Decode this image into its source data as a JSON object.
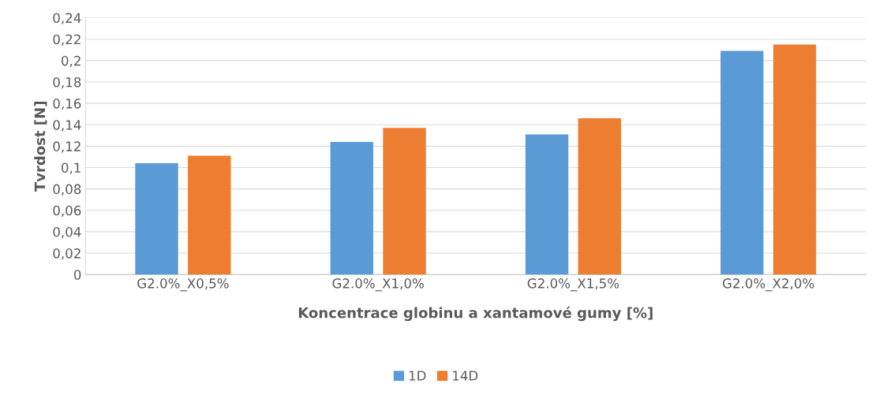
{
  "chart_data": {
    "type": "bar",
    "xlabel": "Koncentrace globinu a xantamové gumy [%]",
    "ylabel": "Tvrdost [N]",
    "categories": [
      "G2.0%_X0,5%",
      "G2.0%_X1,0%",
      "G2.0%_X1,5%",
      "G2.0%_X2,0%"
    ],
    "series": [
      {
        "name": "1D",
        "color": "#5b9bd5",
        "values": [
          0.104,
          0.124,
          0.131,
          0.209
        ]
      },
      {
        "name": "14D",
        "color": "#ed7d31",
        "values": [
          0.111,
          0.137,
          0.146,
          0.215
        ]
      }
    ],
    "ylim": [
      0,
      0.24
    ],
    "yticks": [
      0,
      {
        "value": 0.02,
        "label": "0,02"
      },
      {
        "value": 0.04,
        "label": "0,04"
      },
      {
        "value": 0.06,
        "label": "0,06"
      },
      {
        "value": 0.08,
        "label": "0,08"
      },
      {
        "value": 0.1,
        "label": "0,1"
      },
      {
        "value": 0.12,
        "label": "0,12"
      },
      {
        "value": 0.14,
        "label": "0,14"
      },
      {
        "value": 0.16,
        "label": "0,16"
      },
      {
        "value": 0.18,
        "label": "0,18"
      },
      {
        "value": 0.2,
        "label": "0,2"
      },
      {
        "value": 0.22,
        "label": "0,22"
      },
      {
        "value": 0.24,
        "label": "0,24"
      }
    ],
    "grid": "y",
    "legend": "bottom"
  }
}
